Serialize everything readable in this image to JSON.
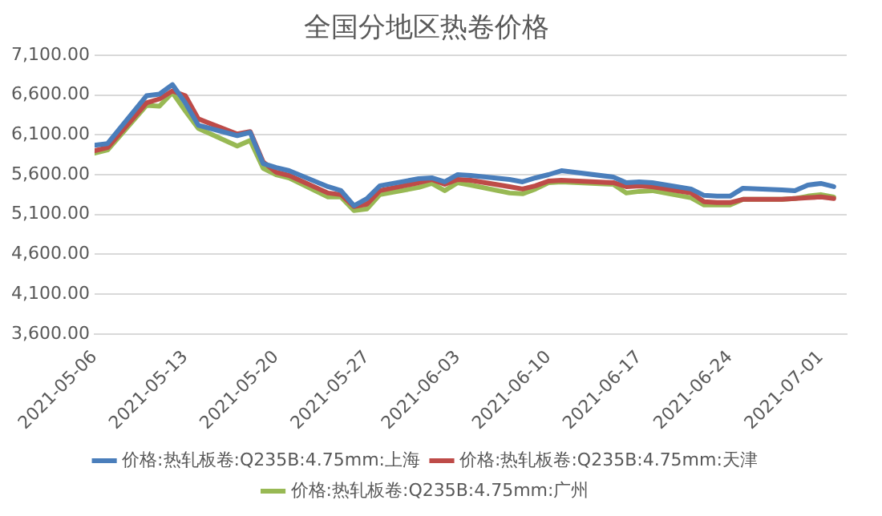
{
  "chart_data": {
    "type": "line",
    "title": "全国分地区热卷价格",
    "x": [
      "2021-05-06",
      "2021-05-07",
      "2021-05-10",
      "2021-05-11",
      "2021-05-12",
      "2021-05-13",
      "2021-05-14",
      "2021-05-17",
      "2021-05-18",
      "2021-05-19",
      "2021-05-20",
      "2021-05-21",
      "2021-05-24",
      "2021-05-25",
      "2021-05-26",
      "2021-05-27",
      "2021-05-28",
      "2021-05-31",
      "2021-06-01",
      "2021-06-02",
      "2021-06-03",
      "2021-06-04",
      "2021-06-07",
      "2021-06-08",
      "2021-06-09",
      "2021-06-10",
      "2021-06-11",
      "2021-06-15",
      "2021-06-16",
      "2021-06-17",
      "2021-06-18",
      "2021-06-21",
      "2021-06-22",
      "2021-06-23",
      "2021-06-24",
      "2021-06-25",
      "2021-06-28",
      "2021-06-29",
      "2021-06-30",
      "2021-07-01",
      "2021-07-02"
    ],
    "series": [
      {
        "name": "价格:热轧板卷:Q235B:4.75mm:上海",
        "color": "#4a7ebb",
        "values": [
          5970,
          5990,
          6590,
          6610,
          6730,
          6500,
          6220,
          6090,
          6130,
          5740,
          5690,
          5650,
          5450,
          5400,
          5210,
          5300,
          5460,
          5550,
          5560,
          5510,
          5600,
          5590,
          5540,
          5510,
          5560,
          5600,
          5650,
          5570,
          5500,
          5510,
          5500,
          5420,
          5340,
          5330,
          5330,
          5430,
          5410,
          5400,
          5470,
          5490,
          5450
        ]
      },
      {
        "name": "价格:热轧板卷:Q235B:4.75mm:天津",
        "color": "#be4b48",
        "values": [
          5900,
          5940,
          6500,
          6550,
          6650,
          6590,
          6300,
          6110,
          6140,
          5760,
          5630,
          5590,
          5370,
          5350,
          5200,
          5230,
          5400,
          5500,
          5540,
          5480,
          5540,
          5530,
          5450,
          5420,
          5460,
          5520,
          5530,
          5500,
          5450,
          5460,
          5450,
          5370,
          5260,
          5250,
          5250,
          5290,
          5290,
          5300,
          5310,
          5320,
          5300
        ]
      },
      {
        "name": "价格:热轧板卷:Q235B:4.75mm:广州",
        "color": "#98b954",
        "values": [
          5870,
          5910,
          6470,
          6460,
          6630,
          6400,
          6180,
          5960,
          6030,
          5680,
          5600,
          5560,
          5320,
          5320,
          5150,
          5170,
          5350,
          5440,
          5490,
          5400,
          5500,
          5470,
          5370,
          5360,
          5420,
          5500,
          5510,
          5480,
          5370,
          5390,
          5400,
          5310,
          5220,
          5220,
          5220,
          5290,
          5290,
          5300,
          5330,
          5350,
          5320
        ]
      }
    ],
    "xlim": [
      "2021-05-06",
      "2021-07-03"
    ],
    "xticks": [
      "2021-05-06",
      "2021-05-13",
      "2021-05-20",
      "2021-05-27",
      "2021-06-03",
      "2021-06-10",
      "2021-06-17",
      "2021-06-24",
      "2021-07-01"
    ],
    "ylim": [
      3600,
      7100
    ],
    "yticks": [
      {
        "value": 3600,
        "label": "3,600.00"
      },
      {
        "value": 4100,
        "label": "4,100.00"
      },
      {
        "value": 4600,
        "label": "4,600.00"
      },
      {
        "value": 5100,
        "label": "5,100.00"
      },
      {
        "value": 5600,
        "label": "5,600.00"
      },
      {
        "value": 6100,
        "label": "6,100.00"
      },
      {
        "value": 6600,
        "label": "6,600.00"
      },
      {
        "value": 7100,
        "label": "7,100.00"
      }
    ],
    "grid": "y",
    "legend": "bottom",
    "marker": "none",
    "line_style": "solid"
  }
}
